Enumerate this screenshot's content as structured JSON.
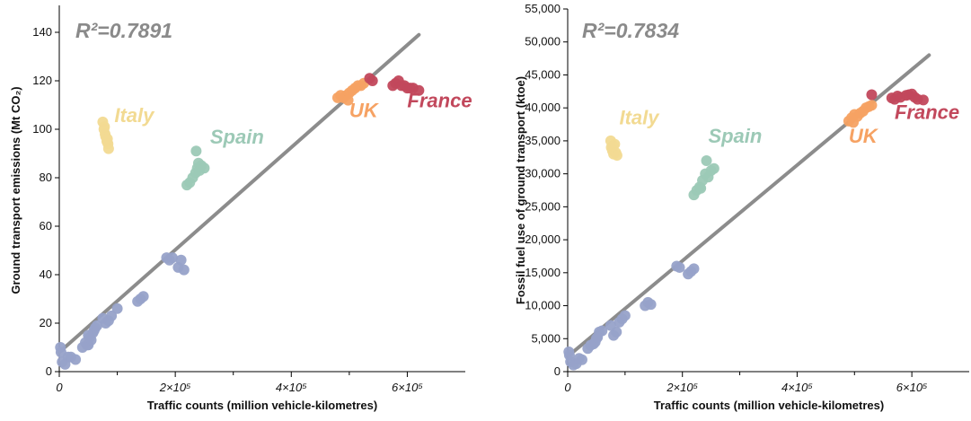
{
  "colors": {
    "other": "#97a2c9",
    "italy": "#f2da92",
    "spain": "#9cc9b6",
    "uk": "#f6a263",
    "france": "#c2485c",
    "fit": "#8c8c8c"
  },
  "chart_data": [
    {
      "type": "scatter",
      "title": "",
      "r2_label": "R²=0.7891",
      "xlabel": "Traffic counts (million vehicle-kilometres)",
      "ylabel": "Ground transport emissions (Mt CO₂)",
      "xlim": [
        0,
        700000
      ],
      "ylim": [
        0,
        150
      ],
      "xticks": [
        {
          "value": 0,
          "label": "0"
        },
        {
          "value": 200000,
          "label": "2×10⁵"
        },
        {
          "value": 400000,
          "label": "4×10⁵"
        },
        {
          "value": 600000,
          "label": "6×10⁵"
        }
      ],
      "yticks": [
        {
          "value": 0,
          "label": "0"
        },
        {
          "value": 20,
          "label": "20"
        },
        {
          "value": 40,
          "label": "40"
        },
        {
          "value": 60,
          "label": "60"
        },
        {
          "value": 80,
          "label": "80"
        },
        {
          "value": 100,
          "label": "100"
        },
        {
          "value": 120,
          "label": "120"
        },
        {
          "value": 140,
          "label": "140"
        }
      ],
      "fit_line": {
        "x": [
          0,
          620000
        ],
        "y": [
          8,
          139
        ]
      },
      "series": [
        {
          "name": "",
          "color_key": "other",
          "points": [
            [
              2000,
              10
            ],
            [
              3000,
              8
            ],
            [
              5000,
              4
            ],
            [
              10000,
              3
            ],
            [
              15000,
              6
            ],
            [
              20000,
              6
            ],
            [
              28000,
              5
            ],
            [
              40000,
              10
            ],
            [
              45000,
              12
            ],
            [
              50000,
              11
            ],
            [
              55000,
              13
            ],
            [
              58000,
              16
            ],
            [
              60000,
              17
            ],
            [
              62000,
              18
            ],
            [
              65000,
              19
            ],
            [
              50000,
              15
            ],
            [
              48000,
              11
            ],
            [
              52000,
              14
            ],
            [
              80000,
              20
            ],
            [
              85000,
              21
            ],
            [
              90000,
              23
            ],
            [
              100000,
              26
            ],
            [
              75000,
              22
            ],
            [
              140000,
              30
            ],
            [
              145000,
              31
            ],
            [
              135000,
              29
            ],
            [
              185000,
              47
            ],
            [
              190000,
              46
            ],
            [
              195000,
              47
            ],
            [
              205000,
              43
            ],
            [
              210000,
              46
            ],
            [
              215000,
              42
            ]
          ]
        },
        {
          "name": "Italy",
          "color_key": "italy",
          "label_at": [
            95000,
            103
          ],
          "points": [
            [
              75000,
              103
            ],
            [
              77000,
              100
            ],
            [
              79000,
              98
            ],
            [
              80000,
              97
            ],
            [
              82000,
              95
            ],
            [
              84000,
              94
            ],
            [
              85000,
              92
            ],
            [
              83000,
              96
            ],
            [
              78000,
              101
            ]
          ]
        },
        {
          "name": "Spain",
          "color_key": "spain",
          "label_at": [
            260000,
            94
          ],
          "points": [
            [
              220000,
              77
            ],
            [
              225000,
              78
            ],
            [
              230000,
              80
            ],
            [
              235000,
              82
            ],
            [
              238000,
              84
            ],
            [
              240000,
              86
            ],
            [
              245000,
              85
            ],
            [
              250000,
              84
            ],
            [
              242000,
              83
            ],
            [
              236000,
              91
            ]
          ]
        },
        {
          "name": "UK",
          "color_key": "uk",
          "label_at": [
            500000,
            105
          ],
          "points": [
            [
              480000,
              113
            ],
            [
              485000,
              114
            ],
            [
              490000,
              113
            ],
            [
              495000,
              114
            ],
            [
              500000,
              115
            ],
            [
              505000,
              116
            ],
            [
              510000,
              117
            ],
            [
              515000,
              118
            ],
            [
              520000,
              118
            ],
            [
              525000,
              119
            ],
            [
              498000,
              112
            ]
          ]
        },
        {
          "name": "France",
          "color_key": "france",
          "label_at": [
            600000,
            109
          ],
          "points": [
            [
              535000,
              121
            ],
            [
              540000,
              120
            ],
            [
              575000,
              118
            ],
            [
              580000,
              119
            ],
            [
              585000,
              120
            ],
            [
              590000,
              118
            ],
            [
              595000,
              118
            ],
            [
              600000,
              117
            ],
            [
              605000,
              117
            ],
            [
              610000,
              117
            ],
            [
              620000,
              116
            ]
          ]
        }
      ]
    },
    {
      "type": "scatter",
      "title": "",
      "r2_label": "R²=0.7834",
      "xlabel": "Traffic counts (million vehicle-kilometres)",
      "ylabel": "Fossil fuel use of ground transport (ktoe)",
      "xlim": [
        0,
        700000
      ],
      "ylim": [
        0,
        55000
      ],
      "xticks": [
        {
          "value": 0,
          "label": "0"
        },
        {
          "value": 200000,
          "label": "2×10⁵"
        },
        {
          "value": 400000,
          "label": "4×10⁵"
        },
        {
          "value": 600000,
          "label": "6×10⁵"
        }
      ],
      "yticks": [
        {
          "value": 0,
          "label": "0"
        },
        {
          "value": 5000,
          "label": "5,000"
        },
        {
          "value": 10000,
          "label": "10,000"
        },
        {
          "value": 15000,
          "label": "15,000"
        },
        {
          "value": 20000,
          "label": "20,000"
        },
        {
          "value": 25000,
          "label": "25,000"
        },
        {
          "value": 30000,
          "label": "30,000"
        },
        {
          "value": 35000,
          "label": "35,000"
        },
        {
          "value": 40000,
          "label": "40,000"
        },
        {
          "value": 45000,
          "label": "45,000"
        },
        {
          "value": 50000,
          "label": "50,000"
        },
        {
          "value": 55000,
          "label": "55,000"
        }
      ],
      "fit_line": {
        "x": [
          0,
          630000
        ],
        "y": [
          2300,
          48000
        ]
      },
      "series": [
        {
          "name": "",
          "color_key": "other",
          "points": [
            [
              2000,
              3000
            ],
            [
              3000,
              2500
            ],
            [
              5000,
              1500
            ],
            [
              10000,
              1000
            ],
            [
              15000,
              1200
            ],
            [
              20000,
              2000
            ],
            [
              25000,
              1800
            ],
            [
              35000,
              3500
            ],
            [
              40000,
              4000
            ],
            [
              45000,
              4200
            ],
            [
              50000,
              5000
            ],
            [
              55000,
              6000
            ],
            [
              60000,
              6200
            ],
            [
              48000,
              4500
            ],
            [
              52000,
              5200
            ],
            [
              80000,
              5500
            ],
            [
              85000,
              6000
            ],
            [
              90000,
              7500
            ],
            [
              95000,
              8000
            ],
            [
              100000,
              8500
            ],
            [
              75000,
              7000
            ],
            [
              135000,
              10000
            ],
            [
              140000,
              10500
            ],
            [
              145000,
              10200
            ],
            [
              190000,
              16000
            ],
            [
              195000,
              15800
            ],
            [
              210000,
              14800
            ],
            [
              215000,
              15200
            ],
            [
              220000,
              15600
            ]
          ]
        },
        {
          "name": "Italy",
          "color_key": "italy",
          "label_at": [
            90000,
            37500
          ],
          "points": [
            [
              75000,
              35000
            ],
            [
              76000,
              34000
            ],
            [
              78000,
              33500
            ],
            [
              80000,
              33000
            ],
            [
              82000,
              34500
            ],
            [
              84000,
              33200
            ],
            [
              86000,
              32800
            ],
            [
              79000,
              34200
            ]
          ]
        },
        {
          "name": "Spain",
          "color_key": "spain",
          "label_at": [
            245000,
            34700
          ],
          "points": [
            [
              220000,
              26800
            ],
            [
              225000,
              27500
            ],
            [
              230000,
              28000
            ],
            [
              235000,
              29000
            ],
            [
              240000,
              30000
            ],
            [
              245000,
              29500
            ],
            [
              250000,
              30500
            ],
            [
              255000,
              30800
            ],
            [
              242000,
              32000
            ],
            [
              232000,
              27800
            ]
          ]
        },
        {
          "name": "UK",
          "color_key": "uk",
          "label_at": [
            490000,
            34700
          ],
          "points": [
            [
              490000,
              38000
            ],
            [
              495000,
              38500
            ],
            [
              500000,
              39000
            ],
            [
              505000,
              38700
            ],
            [
              510000,
              39200
            ],
            [
              515000,
              39500
            ],
            [
              520000,
              40000
            ],
            [
              525000,
              40200
            ],
            [
              530000,
              40400
            ],
            [
              498000,
              37800
            ]
          ]
        },
        {
          "name": "France",
          "color_key": "france",
          "label_at": [
            570000,
            38300
          ],
          "points": [
            [
              530000,
              42000
            ],
            [
              565000,
              41500
            ],
            [
              570000,
              41300
            ],
            [
              575000,
              41800
            ],
            [
              580000,
              41600
            ],
            [
              590000,
              41900
            ],
            [
              595000,
              42000
            ],
            [
              600000,
              42100
            ],
            [
              605000,
              41600
            ],
            [
              610000,
              41300
            ],
            [
              620000,
              41200
            ]
          ]
        }
      ]
    }
  ]
}
